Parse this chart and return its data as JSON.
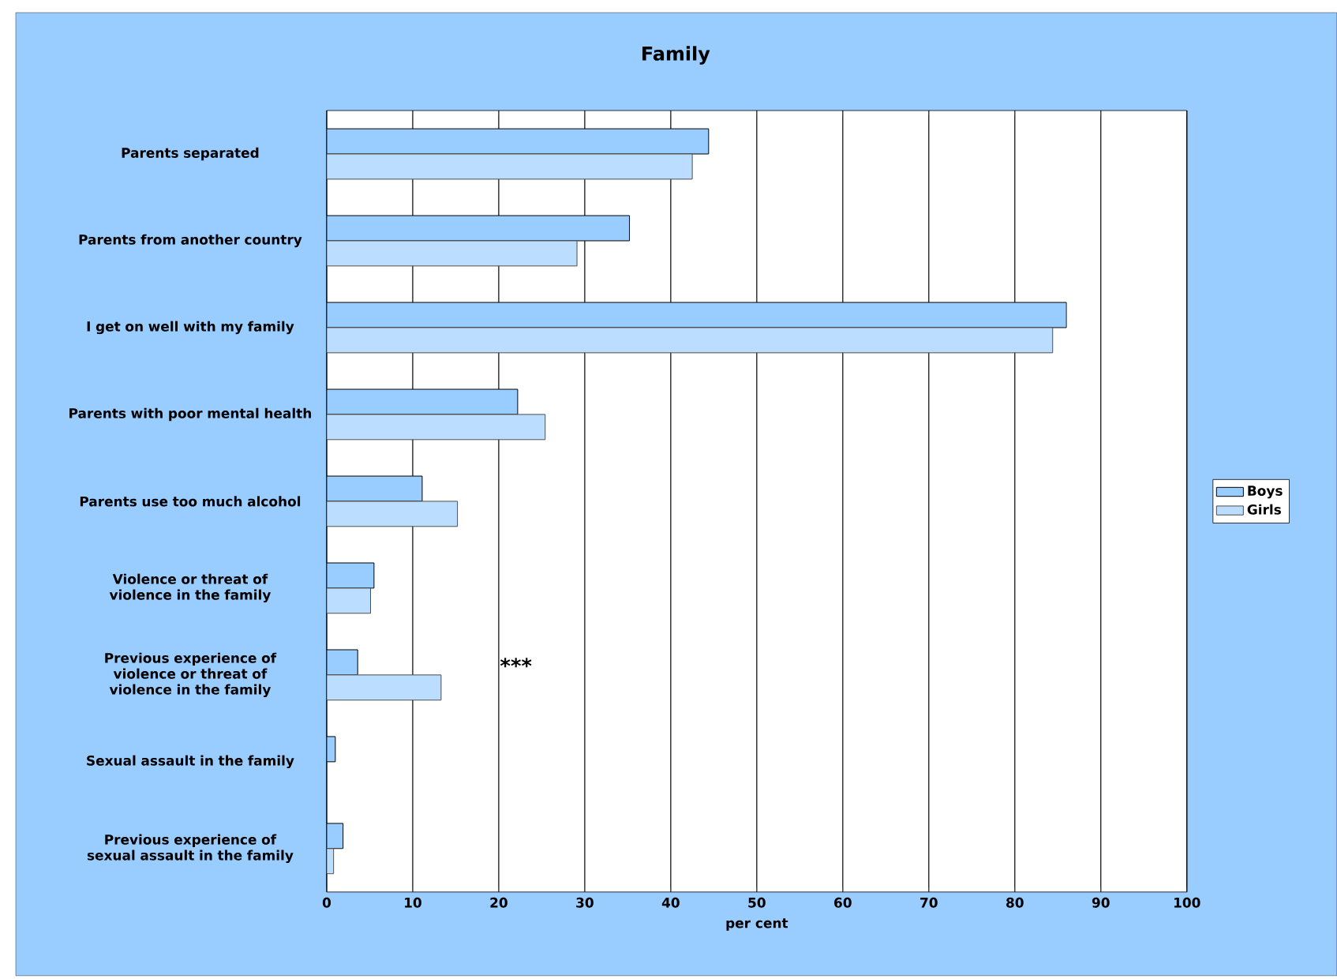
{
  "chart_data": {
    "type": "bar",
    "orientation": "horizontal",
    "title": "Family",
    "xlabel": "per cent",
    "categories": [
      "Parents separated",
      "Parents from another country",
      "I get on well with my family",
      "Parents with poor mental health",
      "Parents use too much alcohol",
      "Violence or threat of violence in the family",
      "Previous experience of violence or threat of violence in the family",
      "Sexual assault in the family",
      "Previous experience of sexual assault in the family"
    ],
    "series": [
      {
        "name": "Boys",
        "color": "#99ccff",
        "values": [
          44.4,
          35.2,
          86.0,
          22.2,
          11.1,
          5.5,
          3.6,
          1.0,
          1.9
        ]
      },
      {
        "name": "Girls",
        "color": "#bbddff",
        "values": [
          42.5,
          29.1,
          84.4,
          25.4,
          15.2,
          5.1,
          13.3,
          0,
          0.8
        ]
      }
    ],
    "xlim": [
      0,
      100
    ],
    "xticks": [
      0,
      10,
      20,
      30,
      40,
      50,
      60,
      70,
      80,
      90,
      100
    ],
    "grid": "x",
    "legend": "right",
    "annotations": [
      "***"
    ]
  }
}
